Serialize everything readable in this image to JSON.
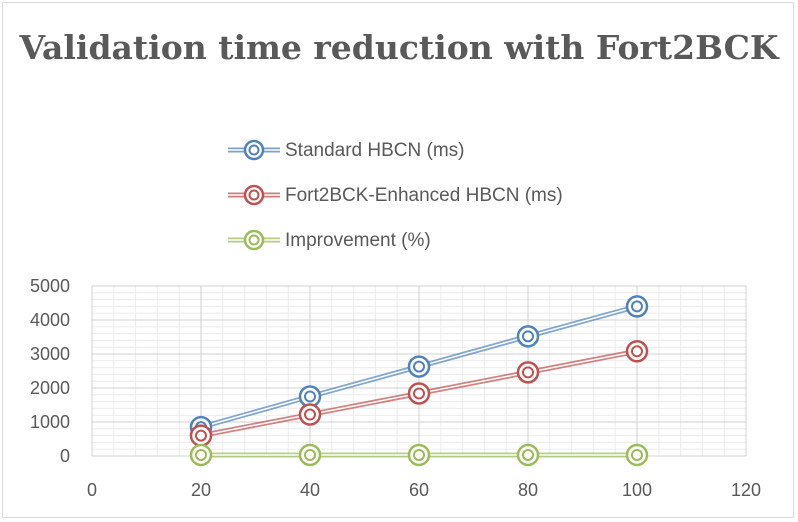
{
  "chart_data": {
    "type": "scatter",
    "title": "Validation time reduction with Fort2BCK",
    "xlim": [
      0,
      120
    ],
    "ylim": [
      0,
      5000
    ],
    "xticks": [
      0,
      20,
      40,
      60,
      80,
      100,
      120
    ],
    "yticks": [
      0,
      1000,
      2000,
      3000,
      4000,
      5000
    ],
    "grid": true,
    "legend_position": "top-center",
    "x": [
      20,
      40,
      60,
      80,
      100
    ],
    "series": [
      {
        "name": "Standard HBCN (ms)",
        "color": "#4f81bd",
        "values": [
          850,
          1750,
          2630,
          3520,
          4400
        ]
      },
      {
        "name": "Fort2BCK-Enhanced HBCN (ms)",
        "color": "#c0504d",
        "values": [
          600,
          1220,
          1840,
          2460,
          3080
        ]
      },
      {
        "name": "Improvement (%)",
        "color": "#9bbb59",
        "values": [
          30,
          30,
          30,
          30,
          30
        ]
      }
    ]
  }
}
